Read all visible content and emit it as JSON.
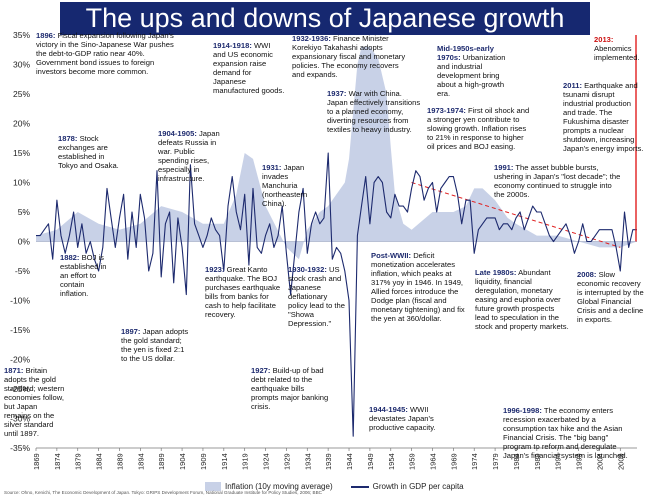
{
  "title": "The ups and downs of Japanese growth",
  "source": "Source: Ohno, Kenichi, The Economic Development of Japan. Tokyo: GRIPS Development Forum, National Graduate Institute for Policy Studies, 2006; BBC",
  "colors": {
    "title_bg": "#162870",
    "growth_line": "#1d2a6e",
    "inflation_area": "#c8d1e7",
    "trend_line": "#e02020",
    "abenomics_line": "#e02020"
  },
  "legend": {
    "inflation": "Inflation (10y moving average)",
    "growth": "Growth in GDP per capita"
  },
  "annotations": [
    {
      "year": "1896:",
      "text": "Fiscal expansion following Japan's victory in the Sino-Japanese War pushes the debt-to-GDP ratio near 40%. Government bond issues to foreign investors become more common."
    },
    {
      "year": "1878:",
      "text": "Stock exchanges are established in Tokyo and Osaka."
    },
    {
      "year": "1882:",
      "text": "BOJ is established in an effort to contain inflation."
    },
    {
      "year": "1871:",
      "text": "Britain adopts the gold standard; western economies follow, but Japan remains on the silver standard until 1897."
    },
    {
      "year": "1897:",
      "text": "Japan adopts the gold standard; the yen is fixed 2:1 to the US dollar."
    },
    {
      "year": "1904-1905:",
      "text": "Japan defeats Russia in war. Public spending rises, especially in infrastructure."
    },
    {
      "year": "1914-1918:",
      "text": "WWI and US economic expansion raise demand for Japanese manufactured goods."
    },
    {
      "year": "1923:",
      "text": "Great Kanto earthquake. The BOJ purchases earthquake bills from banks for cash to help facilitate recovery."
    },
    {
      "year": "1927:",
      "text": "Build-up of bad debt related to the earthquake bills prompts major banking crisis."
    },
    {
      "year": "1931:",
      "text": "Japan invades Manchuria (northeastern China)."
    },
    {
      "year": "1930-1932:",
      "text": "US stock crash and Japanese deflationary policy lead to the \"Showa Depression.\""
    },
    {
      "year": "1932-1936:",
      "text": "Finance Minister Korekiyo Takahashi adopts expansionary fiscal and monetary policies. The economy recovers and expands."
    },
    {
      "year": "1937:",
      "text": "War with China. Japan effectively transitions to a planned economy, diverting resources from textiles to heavy industry."
    },
    {
      "year": "Post-WWII:",
      "text": "Deficit monetization accelerates inflation, which peaks at 317% yoy in 1946. In 1949, Allied forces introduce the Dodge plan (fiscal and monetary tightening) and fix the yen at 360/dollar."
    },
    {
      "year": "1944-1945:",
      "text": "WWII devastates Japan's productive capacity."
    },
    {
      "year": "Mid-1950s-early 1970s:",
      "text": "Urbanization and industrial development bring about a high-growth era."
    },
    {
      "year": "1973-1974:",
      "text": "First oil shock and a stronger yen contribute to slowing growth. Inflation rises to 21% in response to higher oil prices and BOJ easing."
    },
    {
      "year": "Late 1980s:",
      "text": "Abundant liquidity, financial deregulation, monetary easing and euphoria over future growth prospects lead to speculation in the stock and property markets."
    },
    {
      "year": "1991:",
      "text": "The asset bubble bursts, ushering in Japan's \"lost decade\"; the economy continued to struggle into the 2000s."
    },
    {
      "year": "1996-1998:",
      "text": "The economy enters recession exacerbated by a consumption tax hike and the Asian Financial Crisis. The \"big bang\" program to reform and deregulate Japan's financial system is launched."
    },
    {
      "year": "2008:",
      "text": "Slow economic recovery is interrupted by the Global Financial Crisis and a decline in exports."
    },
    {
      "year": "2011:",
      "text": "Earthquake and tsunami disrupt industrial production and trade. The Fukushima disaster prompts a nuclear shutdown, increasing Japan's energy imports."
    },
    {
      "year": "2013:",
      "text": "Abenomics implemented."
    }
  ],
  "chart_data": {
    "type": "line",
    "title": "The ups and downs of Japanese growth",
    "xlim": [
      1869,
      2013
    ],
    "ylim": [
      -35,
      35
    ],
    "y_unit": "%",
    "y_ticks": [
      -35,
      -30,
      -25,
      -20,
      -15,
      -10,
      -5,
      0,
      5,
      10,
      15,
      20,
      25,
      30,
      35
    ],
    "x_ticks": [
      1869,
      1874,
      1879,
      1884,
      1889,
      1894,
      1899,
      1904,
      1909,
      1914,
      1919,
      1924,
      1929,
      1934,
      1939,
      1944,
      1949,
      1954,
      1959,
      1964,
      1969,
      1974,
      1979,
      1984,
      1989,
      1994,
      1999,
      2004,
      2009
    ],
    "series": [
      {
        "name": "Growth in GDP per capita",
        "kind": "line",
        "points": [
          [
            1869,
            1
          ],
          [
            1870,
            1
          ],
          [
            1871,
            2
          ],
          [
            1872,
            3
          ],
          [
            1873,
            -3
          ],
          [
            1874,
            7
          ],
          [
            1875,
            1
          ],
          [
            1876,
            -2
          ],
          [
            1877,
            1
          ],
          [
            1878,
            5
          ],
          [
            1879,
            -1
          ],
          [
            1880,
            3
          ],
          [
            1881,
            -2
          ],
          [
            1882,
            0
          ],
          [
            1883,
            -3
          ],
          [
            1884,
            -5
          ],
          [
            1885,
            -1
          ],
          [
            1886,
            9
          ],
          [
            1887,
            4
          ],
          [
            1888,
            -1
          ],
          [
            1889,
            4
          ],
          [
            1890,
            8
          ],
          [
            1891,
            -3
          ],
          [
            1892,
            5
          ],
          [
            1893,
            -1
          ],
          [
            1894,
            8
          ],
          [
            1895,
            4
          ],
          [
            1896,
            -5
          ],
          [
            1897,
            -2
          ],
          [
            1898,
            12
          ],
          [
            1899,
            -6
          ],
          [
            1900,
            3
          ],
          [
            1901,
            5
          ],
          [
            1902,
            -7
          ],
          [
            1903,
            4
          ],
          [
            1904,
            -1
          ],
          [
            1905,
            -9
          ],
          [
            1906,
            13
          ],
          [
            1907,
            3
          ],
          [
            1908,
            1
          ],
          [
            1909,
            -1
          ],
          [
            1910,
            1
          ],
          [
            1911,
            4
          ],
          [
            1912,
            2
          ],
          [
            1913,
            1
          ],
          [
            1914,
            -5
          ],
          [
            1915,
            6
          ],
          [
            1916,
            11
          ],
          [
            1917,
            5
          ],
          [
            1918,
            2
          ],
          [
            1919,
            8
          ],
          [
            1920,
            -4
          ],
          [
            1921,
            9
          ],
          [
            1922,
            -1
          ],
          [
            1923,
            -2
          ],
          [
            1924,
            1
          ],
          [
            1925,
            3
          ],
          [
            1926,
            -1
          ],
          [
            1927,
            1
          ],
          [
            1928,
            6
          ],
          [
            1929,
            -2
          ],
          [
            1930,
            -9
          ],
          [
            1931,
            -2
          ],
          [
            1932,
            5
          ],
          [
            1933,
            9
          ],
          [
            1934,
            -2
          ],
          [
            1935,
            3
          ],
          [
            1936,
            5
          ],
          [
            1937,
            3
          ],
          [
            1938,
            4
          ],
          [
            1939,
            15
          ],
          [
            1940,
            -3
          ],
          [
            1941,
            -1
          ],
          [
            1942,
            -2
          ],
          [
            1943,
            -5
          ],
          [
            1944,
            -10
          ],
          [
            1945,
            -33
          ],
          [
            1946,
            1
          ],
          [
            1947,
            6
          ],
          [
            1948,
            11
          ],
          [
            1949,
            3
          ],
          [
            1950,
            10
          ],
          [
            1951,
            11
          ],
          [
            1952,
            10
          ],
          [
            1953,
            5
          ],
          [
            1954,
            4
          ],
          [
            1955,
            8
          ],
          [
            1956,
            6
          ],
          [
            1957,
            6
          ],
          [
            1958,
            5
          ],
          [
            1959,
            9
          ],
          [
            1960,
            12
          ],
          [
            1961,
            11
          ],
          [
            1962,
            7
          ],
          [
            1963,
            9
          ],
          [
            1964,
            10
          ],
          [
            1965,
            5
          ],
          [
            1966,
            9
          ],
          [
            1967,
            10
          ],
          [
            1968,
            11
          ],
          [
            1969,
            11
          ],
          [
            1970,
            8
          ],
          [
            1971,
            3
          ],
          [
            1972,
            7
          ],
          [
            1973,
            7
          ],
          [
            1974,
            -2
          ],
          [
            1975,
            2
          ],
          [
            1976,
            3
          ],
          [
            1977,
            4
          ],
          [
            1978,
            4
          ],
          [
            1979,
            4
          ],
          [
            1980,
            2
          ],
          [
            1981,
            3
          ],
          [
            1982,
            3
          ],
          [
            1983,
            2
          ],
          [
            1984,
            4
          ],
          [
            1985,
            5
          ],
          [
            1986,
            2
          ],
          [
            1987,
            4
          ],
          [
            1988,
            6
          ],
          [
            1989,
            5
          ],
          [
            1990,
            5
          ],
          [
            1991,
            3
          ],
          [
            1992,
            1
          ],
          [
            1993,
            0
          ],
          [
            1994,
            1
          ],
          [
            1995,
            2
          ],
          [
            1996,
            3
          ],
          [
            1997,
            1
          ],
          [
            1998,
            -2
          ],
          [
            1999,
            0
          ],
          [
            2000,
            3
          ],
          [
            2001,
            0
          ],
          [
            2002,
            0
          ],
          [
            2003,
            1
          ],
          [
            2004,
            2
          ],
          [
            2005,
            2
          ],
          [
            2006,
            2
          ],
          [
            2007,
            2
          ],
          [
            2008,
            -1
          ],
          [
            2009,
            -5
          ],
          [
            2010,
            5
          ],
          [
            2011,
            -1
          ],
          [
            2012,
            2
          ],
          [
            2013,
            2
          ]
        ]
      },
      {
        "name": "Inflation (10y moving average)",
        "kind": "area",
        "points": [
          [
            1869,
            1
          ],
          [
            1874,
            2
          ],
          [
            1879,
            5
          ],
          [
            1884,
            3
          ],
          [
            1889,
            2
          ],
          [
            1894,
            3
          ],
          [
            1899,
            6
          ],
          [
            1904,
            5
          ],
          [
            1909,
            3
          ],
          [
            1914,
            3
          ],
          [
            1917,
            8
          ],
          [
            1919,
            15
          ],
          [
            1921,
            14
          ],
          [
            1924,
            6
          ],
          [
            1929,
            -1
          ],
          [
            1932,
            -3
          ],
          [
            1934,
            2
          ],
          [
            1937,
            5
          ],
          [
            1939,
            6
          ],
          [
            1941,
            8
          ],
          [
            1943,
            10
          ],
          [
            1944,
            14
          ],
          [
            1945,
            22
          ],
          [
            1946,
            30
          ],
          [
            1947,
            33
          ],
          [
            1949,
            33
          ],
          [
            1951,
            31
          ],
          [
            1953,
            25
          ],
          [
            1954,
            16
          ],
          [
            1955,
            8
          ],
          [
            1957,
            3
          ],
          [
            1959,
            2
          ],
          [
            1964,
            5
          ],
          [
            1969,
            5
          ],
          [
            1972,
            6
          ],
          [
            1974,
            9
          ],
          [
            1976,
            9
          ],
          [
            1979,
            7
          ],
          [
            1982,
            4
          ],
          [
            1984,
            3
          ],
          [
            1989,
            1
          ],
          [
            1994,
            1
          ],
          [
            1999,
            0
          ],
          [
            2004,
            -1
          ],
          [
            2009,
            -1
          ],
          [
            2013,
            0
          ]
        ]
      }
    ],
    "trendline": {
      "from": [
        1959,
        10
      ],
      "to": [
        2009,
        -1
      ],
      "color": "#e02020",
      "style": "dashed"
    },
    "abenomics_marker": {
      "x": 2013,
      "y_from": 0,
      "y_to": 35,
      "color": "#e02020"
    }
  }
}
